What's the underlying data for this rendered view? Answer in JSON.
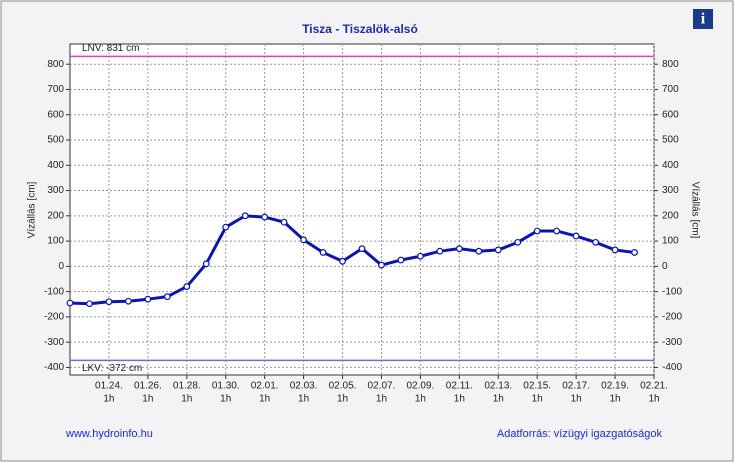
{
  "chart_data": {
    "type": "line",
    "title": "Tisza - Tiszalök-alsó",
    "ylabel": "Vízállás [cm]",
    "y2label": "Vízállás [cm]",
    "x": [
      "01.22.",
      "01.23.",
      "01.24.",
      "01.25.",
      "01.26.",
      "01.27.",
      "01.28.",
      "01.29.",
      "01.30.",
      "01.31.",
      "02.01.",
      "02.02.",
      "02.03.",
      "02.04.",
      "02.05.",
      "02.06.",
      "02.07.",
      "02.08.",
      "02.09.",
      "02.10.",
      "02.11.",
      "02.12.",
      "02.13.",
      "02.14.",
      "02.15.",
      "02.16.",
      "02.17.",
      "02.18.",
      "02.19.",
      "02.20."
    ],
    "series": [
      {
        "name": "Vízállás",
        "color": "#0a14b4",
        "values": [
          -145,
          -148,
          -140,
          -138,
          -130,
          -120,
          -80,
          10,
          155,
          200,
          195,
          175,
          105,
          55,
          20,
          70,
          5,
          25,
          40,
          60,
          70,
          60,
          65,
          95,
          140,
          140,
          120,
          95,
          65,
          55
        ]
      }
    ],
    "xlim": [
      "01.22.",
      "02.21."
    ],
    "xticks": [
      "01.24.",
      "01.26.",
      "01.28.",
      "01.30.",
      "02.01.",
      "02.03.",
      "02.05.",
      "02.07.",
      "02.09.",
      "02.11.",
      "02.13.",
      "02.15.",
      "02.17.",
      "02.19.",
      "02.21."
    ],
    "xtick_sublabel": "1h",
    "ylim": [
      -430,
      880
    ],
    "yticks": [
      -400,
      -300,
      -200,
      -100,
      0,
      100,
      200,
      300,
      400,
      500,
      600,
      700,
      800
    ],
    "grid": true,
    "reference_lines": [
      {
        "label": "LNV: 831 cm",
        "value": 831,
        "color": "#e040c0"
      },
      {
        "label": "LKV: -372 cm",
        "value": -372,
        "color": "#6070e0"
      }
    ],
    "footer_left": "www.hydroinfo.hu",
    "footer_right": "Adatforrás: vízügyi igazgatóságok",
    "info_icon": "i"
  }
}
